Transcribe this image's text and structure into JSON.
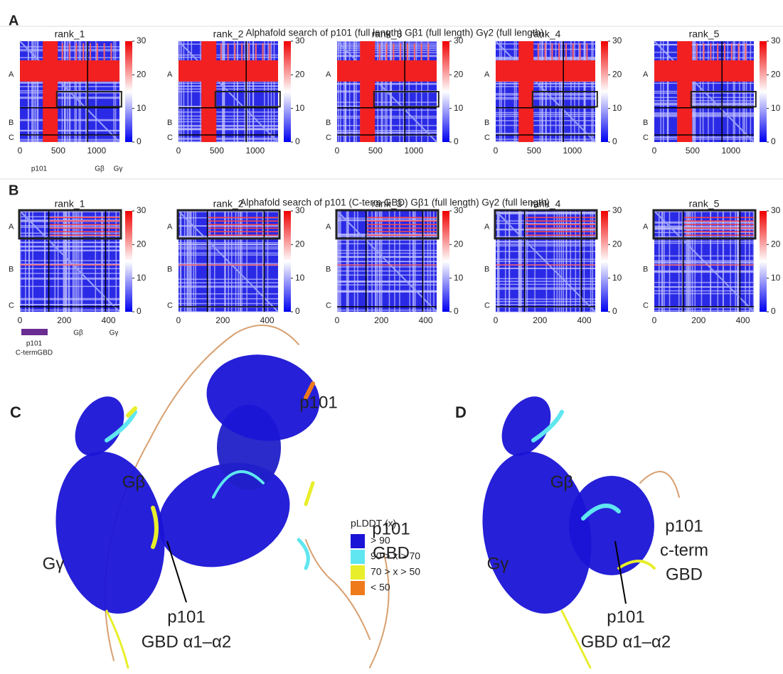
{
  "panel_a": {
    "label": "A",
    "title": "Alphafold search of p101  (full length) Gβ1 (full length) Gγ2 (full length)",
    "ranks": [
      "rank_1",
      "rank_2",
      "rank_3",
      "rank_4",
      "rank_5"
    ],
    "x_ticks": [
      "0",
      "500",
      "1000"
    ],
    "y_labels": [
      "A",
      "B",
      "C"
    ],
    "colorbar_ticks": [
      "30",
      "20",
      "10",
      "0"
    ],
    "chains": [
      "p101",
      "Gβ",
      "Gγ"
    ]
  },
  "panel_b": {
    "label": "B",
    "title": "Alphafold search of p101 (C-term GBD) Gβ1 (full length) Gγ2 (full length)",
    "ranks": [
      "rank_1",
      "rank_2",
      "rank_3",
      "rank_4",
      "rank_5"
    ],
    "x_ticks": [
      "0",
      "200",
      "400"
    ],
    "y_labels": [
      "A",
      "B",
      "C"
    ],
    "colorbar_ticks": [
      "30",
      "20",
      "10",
      "0"
    ],
    "chains": [
      "p101",
      "C-termGBD",
      "Gβ",
      "Gγ"
    ]
  },
  "panel_c": {
    "label": "C",
    "labels": [
      [
        "p101"
      ],
      [
        "Gβ"
      ],
      [
        "Gγ"
      ],
      [
        "p101",
        "GBD"
      ],
      [
        "p101",
        "GBD α1–α2"
      ]
    ]
  },
  "legend": {
    "title": "pLDDT (x)",
    "items": [
      {
        "label": "> 90",
        "color": "#1a14d6"
      },
      {
        "label": "90 > x > 70",
        "color": "#5fe6f0"
      },
      {
        "label": "70 > x > 50",
        "color": "#e8ee2a"
      },
      {
        "label": "< 50",
        "color": "#ef7a1c"
      }
    ]
  },
  "panel_d": {
    "label": "D",
    "labels": [
      [
        "Gβ"
      ],
      [
        "Gγ"
      ],
      [
        "p101",
        "c-term",
        "GBD"
      ],
      [
        "p101",
        "GBD α1–α2"
      ]
    ]
  }
}
